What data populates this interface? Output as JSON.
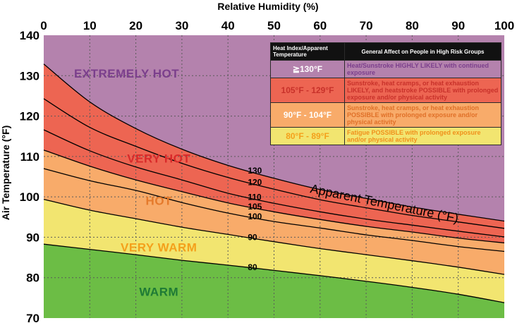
{
  "chart_data": {
    "type": "area",
    "title": "",
    "xlabel": "Relative Humidity (%)",
    "ylabel": "Air Temperature (°F)",
    "xlim": [
      0,
      100
    ],
    "ylim": [
      70,
      140
    ],
    "x_ticks": [
      "0",
      "10",
      "20",
      "30",
      "40",
      "50",
      "60",
      "70",
      "80",
      "90",
      "100"
    ],
    "y_ticks": [
      "70",
      "80",
      "90",
      "100",
      "110",
      "120",
      "130",
      "140"
    ],
    "grid": true,
    "x": [
      0,
      10,
      20,
      30,
      40,
      50,
      60,
      70,
      80,
      90,
      100
    ],
    "series": [
      {
        "name": "80",
        "label_x": 44,
        "values": [
          88.3,
          87.0,
          85.7,
          84.3,
          83.1,
          81.8,
          80.5,
          79.1,
          77.6,
          75.9,
          73.8
        ]
      },
      {
        "name": "90",
        "label_x": 44,
        "values": [
          99.4,
          96.7,
          94.6,
          92.5,
          90.7,
          88.9,
          87.2,
          85.7,
          84.2,
          82.6,
          80.8
        ]
      },
      {
        "name": "100",
        "label_x": 44,
        "values": [
          107.0,
          104.0,
          101.6,
          98.6,
          96.0,
          93.9,
          92.3,
          90.6,
          89.2,
          87.7,
          86.5
        ]
      },
      {
        "name": "105",
        "label_x": 44,
        "values": [
          111.6,
          107.6,
          104.2,
          101.3,
          98.5,
          96.3,
          94.4,
          92.7,
          91.3,
          89.8,
          88.6
        ]
      },
      {
        "name": "110",
        "label_x": 44,
        "values": [
          116.6,
          111.4,
          107.4,
          104.2,
          100.9,
          98.4,
          96.3,
          94.5,
          93.0,
          91.5,
          90.1
        ]
      },
      {
        "name": "120",
        "label_x": 44,
        "values": [
          124.3,
          117.2,
          112.5,
          108.3,
          104.8,
          101.9,
          99.3,
          97.3,
          95.4,
          93.8,
          92.2
        ]
      },
      {
        "name": "130",
        "label_x": 44,
        "values": [
          132.9,
          123.5,
          116.9,
          111.8,
          107.8,
          104.6,
          101.8,
          99.6,
          97.5,
          95.7,
          94.0
        ]
      }
    ],
    "bands": [
      {
        "label": "WARM",
        "color": "#6cbd45",
        "text_color": "#1e7a35",
        "text_pos": [
          25,
          75.5
        ]
      },
      {
        "label": "VERY WARM",
        "color": "#f2e570",
        "text_color": "#f4a01b",
        "text_pos": [
          25,
          86.5
        ]
      },
      {
        "label": "HOT",
        "color": "#f8ab6a",
        "text_color": "#e57a2b",
        "text_pos": [
          25,
          98.0
        ]
      },
      {
        "label": "VERY HOT",
        "color": "#ed6552",
        "text_color": "#d92a2a",
        "text_pos": [
          25,
          108.5
        ]
      },
      {
        "label": "EXTREMELY HOT",
        "color": "#b482ad",
        "text_color": "#7b3f8c",
        "text_pos": [
          18,
          129.5
        ]
      }
    ],
    "annotation": "Apparent Temperature (°F)"
  },
  "legend": {
    "header_range": "Heat Index/Apparent Temperature",
    "header_effect": "General Affect on People in High Risk Groups",
    "rows": [
      {
        "range": "≧130°F",
        "effect": "Heat/Sunstroke HIGHLY LIKELY with continued exposure",
        "bg": "#b482ad",
        "range_color": "#ffffff",
        "text_color": "#7b3f8c"
      },
      {
        "range": "105°F - 129°F",
        "effect": "Sunstroke, heat cramps, or heat exhaustion LIKELY, and heatstroke POSSIBLE with prolonged exposure and/or physical activity",
        "bg": "#ed6552",
        "range_color": "#c8312a",
        "text_color": "#c8312a"
      },
      {
        "range": "90°F - 104°F",
        "effect": "Sunstroke, heat cramps, or heat exhaustion POSSIBLE with prolonged exposure and/or physical activity",
        "bg": "#f8ab6a",
        "range_color": "#ffffff",
        "text_color": "#e07028"
      },
      {
        "range": "80°F - 89°F",
        "effect": "Fatigue POSSIBLE with prolonged exposure and/or physical activity",
        "bg": "#f2e570",
        "range_color": "#f4a01b",
        "text_color": "#f0901b"
      }
    ]
  }
}
